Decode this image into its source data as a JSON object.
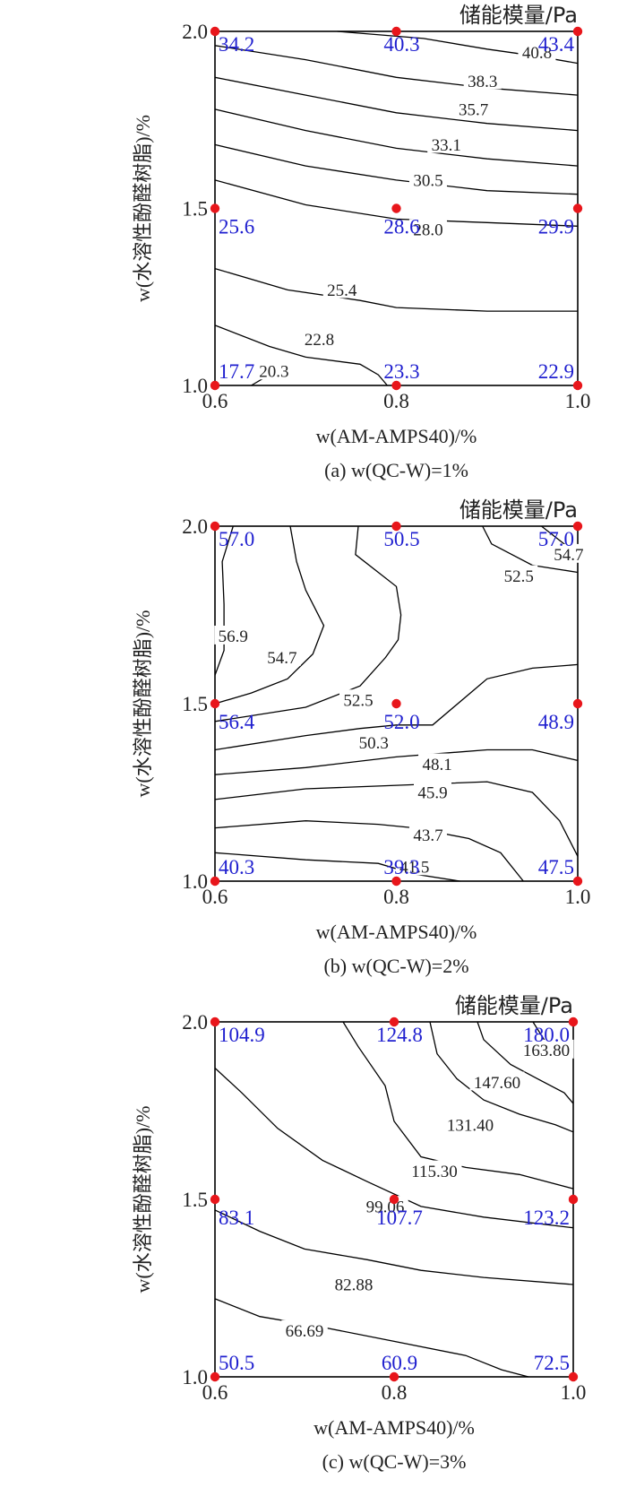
{
  "colors": {
    "axis": "#000000",
    "contour": "#000000",
    "point": "#e8161b",
    "point_label": "#1f1fcf",
    "text": "#222222"
  },
  "chart_data": [
    {
      "type": "contour",
      "panel_caption": "(a) w(QC-W)=1%",
      "legend_title": "储能模量/Pa",
      "xlabel": "w(AM-AMPS40)/%",
      "ylabel": "w(水溶性酚醛树脂)/%",
      "xlim": [
        0.6,
        1.0
      ],
      "ylim": [
        1.0,
        2.0
      ],
      "x_ticks": [
        "0.6",
        "0.8",
        "1.0"
      ],
      "y_ticks": [
        "1.0",
        "1.5",
        "2.0"
      ],
      "design_points": [
        {
          "x": 0.6,
          "y": 2.0,
          "value": "34.2"
        },
        {
          "x": 0.8,
          "y": 2.0,
          "value": "40.3"
        },
        {
          "x": 1.0,
          "y": 2.0,
          "value": "43.4"
        },
        {
          "x": 0.6,
          "y": 1.5,
          "value": "25.6"
        },
        {
          "x": 0.8,
          "y": 1.5,
          "value": "28.6"
        },
        {
          "x": 1.0,
          "y": 1.5,
          "value": "29.9"
        },
        {
          "x": 0.6,
          "y": 1.0,
          "value": "17.7"
        },
        {
          "x": 0.8,
          "y": 1.0,
          "value": "23.3"
        },
        {
          "x": 1.0,
          "y": 1.0,
          "value": "22.9"
        }
      ],
      "contours": [
        {
          "level": "40.8",
          "points": [
            [
              0.735,
              2.0
            ],
            [
              0.83,
              1.98
            ],
            [
              0.9,
              1.95
            ],
            [
              0.955,
              1.93
            ],
            [
              1.0,
              1.91
            ]
          ],
          "label_at": [
            0.955,
            1.94
          ]
        },
        {
          "level": "38.3",
          "points": [
            [
              0.6,
              1.96
            ],
            [
              0.7,
              1.92
            ],
            [
              0.8,
              1.87
            ],
            [
              0.9,
              1.84
            ],
            [
              1.0,
              1.82
            ]
          ],
          "label_at": [
            0.895,
            1.86
          ]
        },
        {
          "level": "35.7",
          "points": [
            [
              0.6,
              1.87
            ],
            [
              0.7,
              1.82
            ],
            [
              0.8,
              1.77
            ],
            [
              0.9,
              1.74
            ],
            [
              1.0,
              1.72
            ]
          ],
          "label_at": [
            0.885,
            1.78
          ]
        },
        {
          "level": "33.1",
          "points": [
            [
              0.6,
              1.78
            ],
            [
              0.7,
              1.72
            ],
            [
              0.8,
              1.67
            ],
            [
              0.9,
              1.64
            ],
            [
              1.0,
              1.62
            ]
          ],
          "label_at": [
            0.855,
            1.68
          ]
        },
        {
          "level": "30.5",
          "points": [
            [
              0.6,
              1.68
            ],
            [
              0.7,
              1.62
            ],
            [
              0.8,
              1.58
            ],
            [
              0.9,
              1.55
            ],
            [
              1.0,
              1.54
            ]
          ],
          "label_at": [
            0.835,
            1.58
          ]
        },
        {
          "level": "28.0",
          "points": [
            [
              0.6,
              1.58
            ],
            [
              0.7,
              1.51
            ],
            [
              0.8,
              1.47
            ],
            [
              0.9,
              1.46
            ],
            [
              1.0,
              1.45
            ]
          ],
          "label_at": [
            0.835,
            1.44
          ]
        },
        {
          "level": "25.4",
          "points": [
            [
              0.6,
              1.33
            ],
            [
              0.68,
              1.27
            ],
            [
              0.76,
              1.24
            ],
            [
              0.8,
              1.22
            ],
            [
              0.9,
              1.21
            ],
            [
              1.0,
              1.21
            ]
          ],
          "label_at": [
            0.74,
            1.27
          ]
        },
        {
          "level": "22.8",
          "points": [
            [
              0.6,
              1.17
            ],
            [
              0.66,
              1.11
            ],
            [
              0.7,
              1.08
            ],
            [
              0.76,
              1.06
            ],
            [
              0.78,
              1.03
            ],
            [
              0.79,
              1.0
            ]
          ],
          "label_at": [
            0.715,
            1.13
          ]
        },
        {
          "level": "20.3",
          "points": [
            [
              0.64,
              1.0
            ],
            [
              0.66,
              1.03
            ]
          ],
          "label_at": [
            0.665,
            1.04
          ]
        }
      ]
    },
    {
      "type": "contour",
      "panel_caption": "(b) w(QC-W)=2%",
      "legend_title": "储能模量/Pa",
      "xlabel": "w(AM-AMPS40)/%",
      "ylabel": "w(水溶性酚醛树脂)/%",
      "xlim": [
        0.6,
        1.0
      ],
      "ylim": [
        1.0,
        2.0
      ],
      "x_ticks": [
        "0.6",
        "0.8",
        "1.0"
      ],
      "y_ticks": [
        "1.0",
        "1.5",
        "2.0"
      ],
      "design_points": [
        {
          "x": 0.6,
          "y": 2.0,
          "value": "57.0"
        },
        {
          "x": 0.8,
          "y": 2.0,
          "value": "50.5"
        },
        {
          "x": 1.0,
          "y": 2.0,
          "value": "57.0"
        },
        {
          "x": 0.6,
          "y": 1.5,
          "value": "56.4"
        },
        {
          "x": 0.8,
          "y": 1.5,
          "value": "52.0"
        },
        {
          "x": 1.0,
          "y": 1.5,
          "value": "48.9"
        },
        {
          "x": 0.6,
          "y": 1.0,
          "value": "40.3"
        },
        {
          "x": 0.8,
          "y": 1.0,
          "value": "39.3"
        },
        {
          "x": 1.0,
          "y": 1.0,
          "value": "47.5"
        }
      ],
      "contours": [
        {
          "level": "56.9",
          "points": [
            [
              0.62,
              2.0
            ],
            [
              0.608,
              1.9
            ],
            [
              0.61,
              1.78
            ],
            [
              0.61,
              1.65
            ],
            [
              0.6,
              1.58
            ]
          ],
          "label_at": [
            0.62,
            1.69
          ]
        },
        {
          "level": "54.7",
          "points": [
            [
              0.683,
              2.0
            ],
            [
              0.69,
              1.9
            ],
            [
              0.7,
              1.82
            ],
            [
              0.72,
              1.72
            ],
            [
              0.708,
              1.64
            ],
            [
              0.68,
              1.57
            ],
            [
              0.64,
              1.53
            ],
            [
              0.6,
              1.5
            ]
          ],
          "label_at": [
            0.674,
            1.63
          ]
        },
        {
          "level": "52.5",
          "points": [
            [
              0.758,
              2.0
            ],
            [
              0.755,
              1.92
            ],
            [
              0.78,
              1.87
            ],
            [
              0.8,
              1.83
            ],
            [
              0.805,
              1.75
            ],
            [
              0.802,
              1.68
            ],
            [
              0.788,
              1.63
            ],
            [
              0.76,
              1.55
            ],
            [
              0.7,
              1.49
            ],
            [
              0.6,
              1.45
            ]
          ],
          "label_at": [
            0.758,
            1.51
          ]
        },
        {
          "level": "54.7",
          "points": [
            [
              0.96,
              2.0
            ],
            [
              0.985,
              1.95
            ],
            [
              1.0,
              1.92
            ]
          ],
          "label_at": [
            0.99,
            1.92
          ]
        },
        {
          "level": "52.5",
          "points": [
            [
              0.895,
              2.0
            ],
            [
              0.905,
              1.95
            ],
            [
              0.95,
              1.89
            ],
            [
              1.0,
              1.87
            ]
          ],
          "label_at": [
            0.935,
            1.86
          ]
        },
        {
          "level": "50.3",
          "points": [
            [
              0.6,
              1.37
            ],
            [
              0.7,
              1.41
            ],
            [
              0.76,
              1.43
            ],
            [
              0.8,
              1.44
            ],
            [
              0.84,
              1.44
            ],
            [
              0.9,
              1.57
            ],
            [
              0.95,
              1.6
            ],
            [
              1.0,
              1.61
            ]
          ],
          "label_at": [
            0.775,
            1.39
          ]
        },
        {
          "level": "48.1",
          "points": [
            [
              0.6,
              1.3
            ],
            [
              0.7,
              1.32
            ],
            [
              0.8,
              1.35
            ],
            [
              0.9,
              1.37
            ],
            [
              0.95,
              1.37
            ],
            [
              1.0,
              1.34
            ]
          ],
          "label_at": [
            0.845,
            1.33
          ]
        },
        {
          "level": "45.9",
          "points": [
            [
              0.6,
              1.23
            ],
            [
              0.7,
              1.26
            ],
            [
              0.8,
              1.27
            ],
            [
              0.9,
              1.28
            ],
            [
              0.95,
              1.25
            ],
            [
              0.98,
              1.17
            ],
            [
              1.0,
              1.07
            ]
          ],
          "label_at": [
            0.84,
            1.25
          ]
        },
        {
          "level": "43.7",
          "points": [
            [
              0.6,
              1.15
            ],
            [
              0.7,
              1.17
            ],
            [
              0.78,
              1.16
            ],
            [
              0.82,
              1.15
            ],
            [
              0.88,
              1.12
            ],
            [
              0.915,
              1.08
            ],
            [
              0.94,
              1.0
            ]
          ],
          "label_at": [
            0.835,
            1.13
          ]
        },
        {
          "level": "41.5",
          "points": [
            [
              0.6,
              1.08
            ],
            [
              0.7,
              1.06
            ],
            [
              0.78,
              1.05
            ],
            [
              0.82,
              1.02
            ],
            [
              0.87,
              1.0
            ]
          ],
          "label_at": [
            0.82,
            1.04
          ]
        }
      ]
    },
    {
      "type": "contour",
      "panel_caption": "(c) w(QC-W)=3%",
      "legend_title": "储能模量/Pa",
      "xlabel": "w(AM-AMPS40)/%",
      "ylabel": "w(水溶性酚醛树脂)/%",
      "xlim": [
        0.6,
        1.0
      ],
      "ylim": [
        1.0,
        2.0
      ],
      "x_ticks": [
        "0.6",
        "0.8",
        "1.0"
      ],
      "y_ticks": [
        "1.0",
        "1.5",
        "2.0"
      ],
      "design_points": [
        {
          "x": 0.6,
          "y": 2.0,
          "value": "104.9"
        },
        {
          "x": 0.8,
          "y": 2.0,
          "value": "124.8"
        },
        {
          "x": 1.0,
          "y": 2.0,
          "value": "180.0"
        },
        {
          "x": 0.6,
          "y": 1.5,
          "value": "83.1"
        },
        {
          "x": 0.8,
          "y": 1.5,
          "value": "107.7"
        },
        {
          "x": 1.0,
          "y": 1.5,
          "value": "123.2"
        },
        {
          "x": 0.6,
          "y": 1.0,
          "value": "50.5"
        },
        {
          "x": 0.8,
          "y": 1.0,
          "value": "60.9"
        },
        {
          "x": 1.0,
          "y": 1.0,
          "value": "72.5"
        }
      ],
      "contours": [
        {
          "level": "163.80",
          "points": [
            [
              0.955,
              2.0
            ],
            [
              0.97,
              1.94
            ],
            [
              1.0,
              1.9
            ]
          ],
          "label_at": [
            0.97,
            1.92
          ]
        },
        {
          "level": "147.60",
          "points": [
            [
              0.893,
              2.0
            ],
            [
              0.9,
              1.95
            ],
            [
              0.93,
              1.88
            ],
            [
              0.96,
              1.84
            ],
            [
              0.99,
              1.8
            ],
            [
              1.0,
              1.77
            ]
          ],
          "label_at": [
            0.915,
            1.83
          ]
        },
        {
          "level": "131.40",
          "points": [
            [
              0.84,
              2.0
            ],
            [
              0.848,
              1.91
            ],
            [
              0.87,
              1.84
            ],
            [
              0.9,
              1.78
            ],
            [
              0.94,
              1.74
            ],
            [
              0.98,
              1.71
            ],
            [
              1.0,
              1.69
            ]
          ],
          "label_at": [
            0.885,
            1.71
          ]
        },
        {
          "level": "115.30",
          "points": [
            [
              0.743,
              2.0
            ],
            [
              0.76,
              1.93
            ],
            [
              0.79,
              1.82
            ],
            [
              0.8,
              1.72
            ],
            [
              0.83,
              1.62
            ],
            [
              0.88,
              1.59
            ],
            [
              0.94,
              1.57
            ],
            [
              1.0,
              1.53
            ]
          ],
          "label_at": [
            0.845,
            1.58
          ]
        },
        {
          "level": "99.06",
          "points": [
            [
              0.6,
              1.87
            ],
            [
              0.63,
              1.8
            ],
            [
              0.67,
              1.7
            ],
            [
              0.72,
              1.61
            ],
            [
              0.77,
              1.55
            ],
            [
              0.83,
              1.48
            ],
            [
              0.9,
              1.45
            ],
            [
              1.0,
              1.42
            ]
          ],
          "label_at": [
            0.79,
            1.48
          ]
        },
        {
          "level": "82.88",
          "points": [
            [
              0.6,
              1.47
            ],
            [
              0.65,
              1.41
            ],
            [
              0.7,
              1.36
            ],
            [
              0.77,
              1.33
            ],
            [
              0.83,
              1.3
            ],
            [
              0.9,
              1.28
            ],
            [
              1.0,
              1.26
            ]
          ],
          "label_at": [
            0.755,
            1.26
          ]
        },
        {
          "level": "66.69",
          "points": [
            [
              0.6,
              1.22
            ],
            [
              0.65,
              1.17
            ],
            [
              0.72,
              1.14
            ],
            [
              0.8,
              1.1
            ],
            [
              0.88,
              1.06
            ],
            [
              0.92,
              1.02
            ],
            [
              0.95,
              1.0
            ]
          ],
          "label_at": [
            0.7,
            1.13
          ]
        }
      ]
    }
  ]
}
